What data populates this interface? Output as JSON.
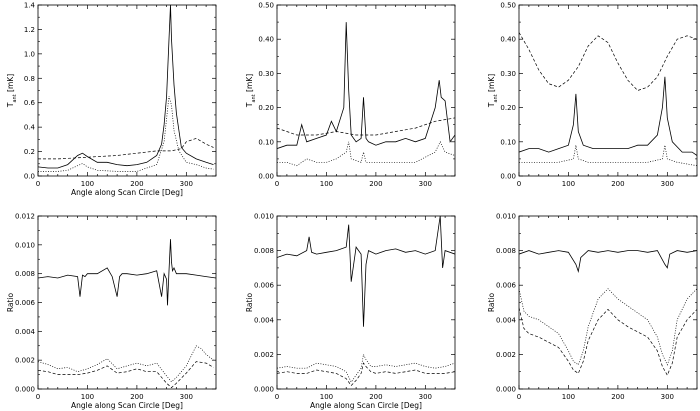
{
  "chart_data": [
    {
      "type": "line",
      "xlabel": "Angle along Scan Circle [Deg]",
      "ylabel_main": "T",
      "ylabel_sub": "ant",
      "ylabel_unit": "[mK]",
      "xlim": [
        0,
        360
      ],
      "ylim": [
        0,
        1.5
      ],
      "xticks": [
        "0",
        "100",
        "200",
        "300"
      ],
      "yticks": [
        "0.0",
        "0.2",
        "0.4",
        "0.6",
        "0.8",
        "1.0",
        "1.2",
        "1.4"
      ],
      "series": [
        {
          "style": "solid",
          "x": [
            0,
            20,
            40,
            60,
            80,
            90,
            100,
            120,
            140,
            160,
            180,
            200,
            220,
            240,
            250,
            255,
            260,
            265,
            268,
            270,
            275,
            280,
            290,
            300,
            320,
            340,
            355
          ],
          "y": [
            0.08,
            0.07,
            0.07,
            0.1,
            0.18,
            0.2,
            0.17,
            0.12,
            0.12,
            0.1,
            0.09,
            0.1,
            0.12,
            0.18,
            0.28,
            0.45,
            0.7,
            1.2,
            1.5,
            1.2,
            0.8,
            0.55,
            0.25,
            0.2,
            0.15,
            0.12,
            0.1
          ]
        },
        {
          "style": "dashed",
          "x": [
            0,
            40,
            80,
            120,
            160,
            200,
            240,
            270,
            290,
            300,
            320,
            340,
            355
          ],
          "y": [
            0.15,
            0.15,
            0.16,
            0.17,
            0.18,
            0.2,
            0.22,
            0.22,
            0.24,
            0.3,
            0.33,
            0.28,
            0.25
          ]
        },
        {
          "style": "dotted",
          "x": [
            0,
            20,
            40,
            60,
            80,
            90,
            100,
            120,
            160,
            200,
            240,
            255,
            265,
            270,
            275,
            285,
            300,
            320,
            340,
            355
          ],
          "y": [
            0.04,
            0.04,
            0.04,
            0.05,
            0.09,
            0.11,
            0.08,
            0.05,
            0.04,
            0.04,
            0.1,
            0.3,
            0.7,
            0.62,
            0.4,
            0.22,
            0.12,
            0.1,
            0.07,
            0.06
          ]
        }
      ]
    },
    {
      "type": "line",
      "xlabel": "",
      "ylabel_main": "T",
      "ylabel_sub": "ant",
      "ylabel_unit": "[mK]",
      "xlim": [
        0,
        360
      ],
      "ylim": [
        0,
        0.5
      ],
      "xticks": [
        "0",
        "100",
        "200",
        "300"
      ],
      "yticks": [
        "0.00",
        "0.10",
        "0.20",
        "0.30",
        "0.40",
        "0.50"
      ],
      "series": [
        {
          "style": "solid",
          "x": [
            0,
            20,
            40,
            50,
            60,
            80,
            100,
            110,
            120,
            135,
            140,
            145,
            150,
            160,
            170,
            175,
            180,
            185,
            200,
            220,
            240,
            260,
            280,
            300,
            320,
            328,
            332,
            340,
            350,
            360
          ],
          "y": [
            0.08,
            0.09,
            0.09,
            0.15,
            0.1,
            0.11,
            0.12,
            0.16,
            0.13,
            0.2,
            0.45,
            0.25,
            0.12,
            0.1,
            0.11,
            0.23,
            0.11,
            0.1,
            0.09,
            0.1,
            0.1,
            0.11,
            0.1,
            0.11,
            0.2,
            0.28,
            0.23,
            0.22,
            0.1,
            0.12
          ]
        },
        {
          "style": "dashed",
          "x": [
            0,
            40,
            80,
            120,
            160,
            200,
            240,
            280,
            320,
            360
          ],
          "y": [
            0.14,
            0.12,
            0.12,
            0.13,
            0.12,
            0.12,
            0.13,
            0.14,
            0.16,
            0.17
          ]
        },
        {
          "style": "dotted",
          "x": [
            0,
            20,
            40,
            60,
            80,
            100,
            120,
            140,
            145,
            150,
            170,
            175,
            180,
            200,
            240,
            280,
            320,
            330,
            340,
            360
          ],
          "y": [
            0.04,
            0.04,
            0.03,
            0.05,
            0.04,
            0.04,
            0.05,
            0.07,
            0.1,
            0.05,
            0.04,
            0.07,
            0.04,
            0.04,
            0.04,
            0.04,
            0.07,
            0.1,
            0.07,
            0.06
          ]
        }
      ]
    },
    {
      "type": "line",
      "xlabel": "",
      "ylabel_main": "T",
      "ylabel_sub": "ant",
      "ylabel_unit": "[mK]",
      "xlim": [
        0,
        360
      ],
      "ylim": [
        0,
        0.5
      ],
      "xticks": [
        "0",
        "100",
        "200",
        "300"
      ],
      "yticks": [
        "0.00",
        "0.10",
        "0.20",
        "0.30",
        "0.40",
        "0.50"
      ],
      "series": [
        {
          "style": "solid",
          "x": [
            0,
            20,
            40,
            60,
            80,
            100,
            110,
            115,
            120,
            130,
            150,
            180,
            200,
            220,
            240,
            260,
            280,
            290,
            295,
            300,
            310,
            330,
            350,
            360
          ],
          "y": [
            0.07,
            0.08,
            0.08,
            0.07,
            0.08,
            0.09,
            0.15,
            0.24,
            0.13,
            0.09,
            0.08,
            0.08,
            0.08,
            0.08,
            0.09,
            0.09,
            0.12,
            0.2,
            0.29,
            0.17,
            0.1,
            0.07,
            0.07,
            0.06
          ]
        },
        {
          "style": "dashed",
          "x": [
            0,
            20,
            40,
            60,
            80,
            100,
            120,
            140,
            160,
            180,
            200,
            220,
            240,
            260,
            280,
            300,
            320,
            340,
            360
          ],
          "y": [
            0.42,
            0.37,
            0.31,
            0.27,
            0.26,
            0.28,
            0.32,
            0.38,
            0.41,
            0.39,
            0.33,
            0.28,
            0.25,
            0.26,
            0.29,
            0.35,
            0.4,
            0.41,
            0.4
          ]
        },
        {
          "style": "dotted",
          "x": [
            0,
            40,
            80,
            110,
            115,
            120,
            140,
            200,
            260,
            290,
            295,
            300,
            320,
            360
          ],
          "y": [
            0.04,
            0.04,
            0.04,
            0.05,
            0.09,
            0.05,
            0.04,
            0.04,
            0.04,
            0.05,
            0.09,
            0.05,
            0.04,
            0.03
          ]
        }
      ]
    },
    {
      "type": "line",
      "xlabel": "Angle along Scan Circle [Deg]",
      "ylabel_main": "Ratio",
      "xlim": [
        0,
        360
      ],
      "ylim": [
        0,
        0.012
      ],
      "xticks": [
        "0",
        "100",
        "200",
        "300"
      ],
      "yticks": [
        "0.000",
        "0.002",
        "0.004",
        "0.006",
        "0.008",
        "0.010",
        "0.012"
      ],
      "series": [
        {
          "style": "solid",
          "x": [
            0,
            20,
            40,
            60,
            80,
            85,
            90,
            95,
            100,
            120,
            140,
            150,
            160,
            165,
            170,
            180,
            200,
            220,
            240,
            250,
            255,
            260,
            262,
            265,
            268,
            270,
            272,
            275,
            280,
            300,
            320,
            340,
            360
          ],
          "y": [
            0.0077,
            0.0078,
            0.0077,
            0.0079,
            0.0078,
            0.0064,
            0.0079,
            0.0078,
            0.008,
            0.008,
            0.0084,
            0.0078,
            0.0064,
            0.0078,
            0.008,
            0.008,
            0.0079,
            0.008,
            0.0082,
            0.0064,
            0.008,
            0.0076,
            0.0058,
            0.0082,
            0.0104,
            0.0088,
            0.0082,
            0.0084,
            0.008,
            0.008,
            0.0079,
            0.0078,
            0.0077
          ]
        },
        {
          "style": "dotted",
          "x": [
            0,
            20,
            40,
            60,
            80,
            100,
            120,
            140,
            160,
            180,
            200,
            220,
            240,
            260,
            270,
            280,
            300,
            320,
            330,
            340,
            355
          ],
          "y": [
            0.0019,
            0.0017,
            0.0014,
            0.0015,
            0.0012,
            0.0014,
            0.0017,
            0.0021,
            0.0014,
            0.0016,
            0.0018,
            0.0016,
            0.0018,
            0.0009,
            0.0005,
            0.0008,
            0.0016,
            0.003,
            0.0028,
            0.0024,
            0.002
          ]
        },
        {
          "style": "dashed",
          "x": [
            0,
            20,
            40,
            60,
            80,
            100,
            120,
            140,
            160,
            180,
            200,
            220,
            240,
            260,
            270,
            280,
            300,
            320,
            340,
            355
          ],
          "y": [
            0.0013,
            0.0012,
            0.001,
            0.001,
            0.001,
            0.0011,
            0.0013,
            0.0016,
            0.0011,
            0.0012,
            0.0014,
            0.0012,
            0.0012,
            0.0004,
            0.0001,
            0.0004,
            0.0011,
            0.0019,
            0.0018,
            0.0015
          ]
        }
      ]
    },
    {
      "type": "line",
      "xlabel": "Angle along Scan Circle [Deg]",
      "ylabel_main": "Ratio",
      "xlim": [
        0,
        360
      ],
      "ylim": [
        0,
        0.01
      ],
      "xticks": [
        "0",
        "100",
        "200",
        "300"
      ],
      "yticks": [
        "0.000",
        "0.002",
        "0.004",
        "0.006",
        "0.008",
        "0.010"
      ],
      "series": [
        {
          "style": "solid",
          "x": [
            0,
            20,
            40,
            60,
            65,
            70,
            80,
            100,
            120,
            140,
            145,
            150,
            160,
            170,
            175,
            180,
            185,
            200,
            220,
            240,
            260,
            280,
            300,
            320,
            330,
            335,
            340,
            360
          ],
          "y": [
            0.0076,
            0.0078,
            0.0077,
            0.008,
            0.0088,
            0.0079,
            0.0078,
            0.0079,
            0.008,
            0.0082,
            0.0095,
            0.0062,
            0.0082,
            0.0078,
            0.0036,
            0.0072,
            0.008,
            0.0078,
            0.008,
            0.0081,
            0.0079,
            0.008,
            0.0078,
            0.008,
            0.01,
            0.007,
            0.008,
            0.0078
          ]
        },
        {
          "style": "dotted",
          "x": [
            0,
            20,
            40,
            60,
            80,
            100,
            120,
            140,
            150,
            160,
            170,
            175,
            180,
            190,
            200,
            220,
            240,
            260,
            280,
            300,
            320,
            340,
            360
          ],
          "y": [
            0.0012,
            0.0013,
            0.0012,
            0.0012,
            0.0015,
            0.0014,
            0.0013,
            0.001,
            0.0004,
            0.0008,
            0.0012,
            0.002,
            0.0017,
            0.0013,
            0.0013,
            0.0014,
            0.0013,
            0.0014,
            0.0015,
            0.0013,
            0.0012,
            0.0013,
            0.0015
          ]
        },
        {
          "style": "dashed",
          "x": [
            0,
            20,
            40,
            60,
            80,
            100,
            120,
            140,
            150,
            160,
            170,
            175,
            180,
            190,
            200,
            220,
            240,
            260,
            280,
            300,
            320,
            340,
            360
          ],
          "y": [
            0.0009,
            0.001,
            0.0009,
            0.0009,
            0.0011,
            0.001,
            0.0009,
            0.0006,
            0.0002,
            0.0005,
            0.0009,
            0.0015,
            0.0013,
            0.001,
            0.0009,
            0.001,
            0.0009,
            0.001,
            0.0011,
            0.0009,
            0.0009,
            0.0009,
            0.001
          ]
        }
      ]
    },
    {
      "type": "line",
      "xlabel": "",
      "ylabel_main": "Ratio",
      "xlim": [
        0,
        360
      ],
      "ylim": [
        0,
        0.01
      ],
      "xticks": [
        "0",
        "100",
        "200",
        "300"
      ],
      "yticks": [
        "0.000",
        "0.002",
        "0.004",
        "0.006",
        "0.008",
        "0.010"
      ],
      "series": [
        {
          "style": "solid",
          "x": [
            0,
            20,
            40,
            60,
            80,
            100,
            115,
            120,
            125,
            140,
            160,
            180,
            200,
            220,
            240,
            260,
            280,
            295,
            300,
            305,
            320,
            340,
            360
          ],
          "y": [
            0.0078,
            0.008,
            0.0078,
            0.0079,
            0.008,
            0.0079,
            0.0072,
            0.0068,
            0.0076,
            0.008,
            0.0079,
            0.008,
            0.0079,
            0.008,
            0.008,
            0.0079,
            0.008,
            0.0072,
            0.007,
            0.0078,
            0.008,
            0.0079,
            0.008
          ]
        },
        {
          "style": "dotted",
          "x": [
            0,
            10,
            20,
            40,
            60,
            80,
            100,
            110,
            120,
            130,
            140,
            160,
            180,
            200,
            220,
            240,
            260,
            280,
            290,
            300,
            310,
            320,
            340,
            360
          ],
          "y": [
            0.0058,
            0.0045,
            0.0042,
            0.004,
            0.0036,
            0.0032,
            0.0022,
            0.0016,
            0.0014,
            0.0022,
            0.0036,
            0.0052,
            0.0058,
            0.0052,
            0.0048,
            0.0044,
            0.004,
            0.003,
            0.002,
            0.0014,
            0.0022,
            0.004,
            0.0052,
            0.0058
          ]
        },
        {
          "style": "dashed",
          "x": [
            0,
            10,
            20,
            40,
            60,
            80,
            100,
            110,
            120,
            130,
            140,
            160,
            180,
            200,
            220,
            240,
            260,
            280,
            290,
            300,
            310,
            320,
            340,
            360
          ],
          "y": [
            0.0047,
            0.0035,
            0.0032,
            0.003,
            0.0027,
            0.0024,
            0.0016,
            0.0011,
            0.0009,
            0.0016,
            0.0028,
            0.004,
            0.0046,
            0.004,
            0.0036,
            0.0033,
            0.003,
            0.0022,
            0.0013,
            0.0008,
            0.0015,
            0.003,
            0.004,
            0.0046
          ]
        }
      ]
    }
  ]
}
